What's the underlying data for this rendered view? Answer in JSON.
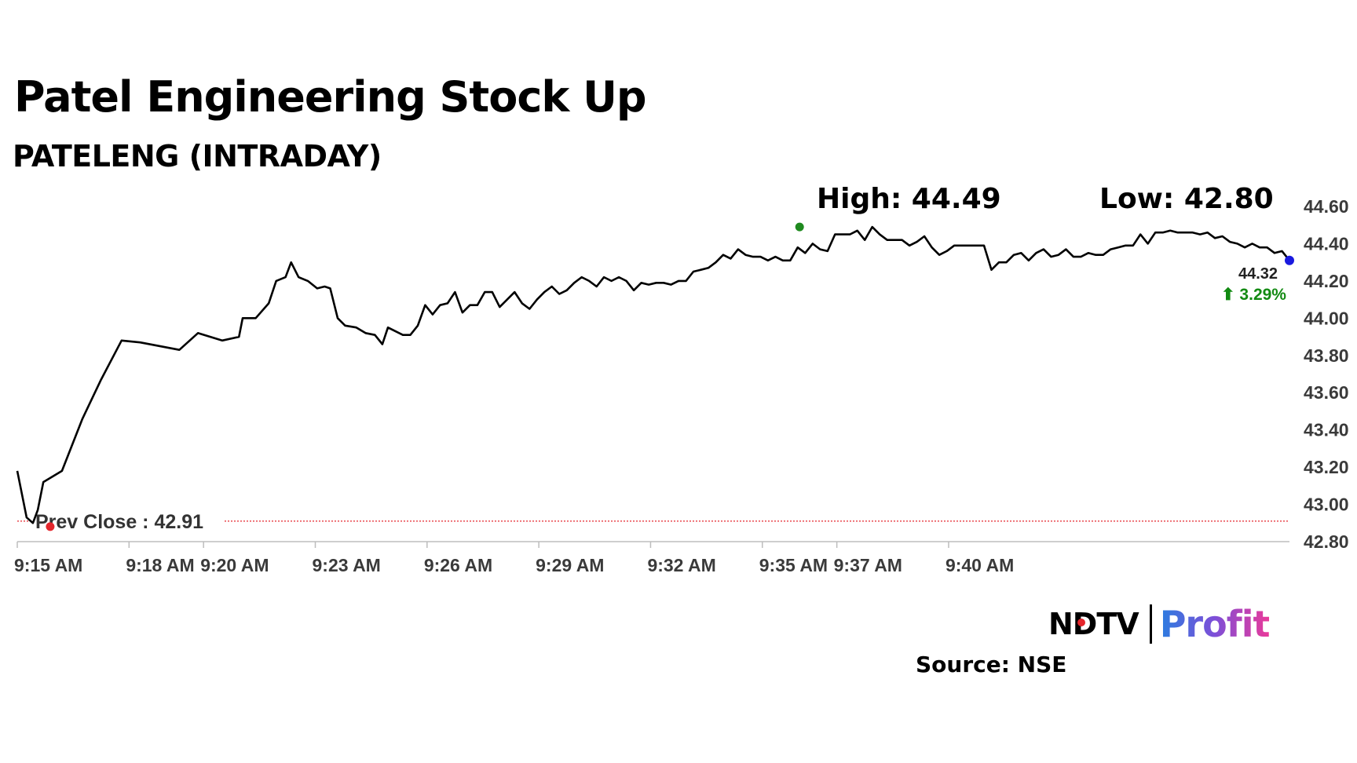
{
  "title": "Patel Engineering Stock Up",
  "subtitle": "PATELENG (INTRADAY)",
  "source": "Source: NSE",
  "logo": {
    "ndtv": "NDTV",
    "profit": "Profit"
  },
  "colors": {
    "line": "#000000",
    "prev_close": "#e4262c",
    "high_marker": "#1f8a1f",
    "last_marker": "#1a1adf",
    "change_up": "#128a12"
  },
  "chart_data": {
    "type": "line",
    "title": "Patel Engineering Stock Up",
    "subtitle": "PATELENG (INTRADAY)",
    "xlabel": "",
    "ylabel": "",
    "ylim": [
      42.8,
      44.6
    ],
    "y_ticks": [
      "42.80",
      "43.00",
      "43.20",
      "43.40",
      "43.60",
      "43.80",
      "44.00",
      "44.20",
      "44.40",
      "44.60"
    ],
    "x_ticks": [
      "9:15 AM",
      "9:18 AM",
      "9:20 AM",
      "9:23 AM",
      "9:26 AM",
      "9:29 AM",
      "9:32 AM",
      "9:35 AM",
      "9:37 AM",
      "9:40 AM"
    ],
    "x_tick_minutes": [
      0,
      3,
      5,
      8,
      11,
      14,
      17,
      20,
      22,
      25
    ],
    "x_range_minutes": [
      0,
      29.9
    ],
    "grid": false,
    "annotations": {
      "high_label": "High: 44.49",
      "low_label": "Low: 42.80",
      "prev_close_label": "Prev Close : 42.91",
      "prev_close_value": 42.91,
      "last_value_label": "44.32",
      "change_label": "⬆ 3.29%",
      "high_value": 44.49,
      "high_minute": 21.0
    },
    "series": [
      {
        "values": [
          [
            0.0,
            43.18
          ],
          [
            0.25,
            42.93
          ],
          [
            0.42,
            42.9
          ],
          [
            0.55,
            42.97
          ],
          [
            0.7,
            43.12
          ],
          [
            1.2,
            43.18
          ],
          [
            1.75,
            43.46
          ],
          [
            2.25,
            43.67
          ],
          [
            2.8,
            43.88
          ],
          [
            3.3,
            43.87
          ],
          [
            4.35,
            43.83
          ],
          [
            4.85,
            43.92
          ],
          [
            5.5,
            43.88
          ],
          [
            5.95,
            43.9
          ],
          [
            6.05,
            44.0
          ],
          [
            6.4,
            44.0
          ],
          [
            6.75,
            44.08
          ],
          [
            6.95,
            44.2
          ],
          [
            7.2,
            44.22
          ],
          [
            7.35,
            44.3
          ],
          [
            7.55,
            44.22
          ],
          [
            7.8,
            44.2
          ],
          [
            8.05,
            44.16
          ],
          [
            8.25,
            44.17
          ],
          [
            8.4,
            44.16
          ],
          [
            8.6,
            44.0
          ],
          [
            8.8,
            43.96
          ],
          [
            9.1,
            43.95
          ],
          [
            9.35,
            43.92
          ],
          [
            9.6,
            43.91
          ],
          [
            9.8,
            43.86
          ],
          [
            9.95,
            43.95
          ],
          [
            10.15,
            43.93
          ],
          [
            10.35,
            43.91
          ],
          [
            10.55,
            43.91
          ],
          [
            10.75,
            43.96
          ],
          [
            10.95,
            44.07
          ],
          [
            11.15,
            44.02
          ],
          [
            11.35,
            44.07
          ],
          [
            11.55,
            44.08
          ],
          [
            11.75,
            44.14
          ],
          [
            11.95,
            44.03
          ],
          [
            12.15,
            44.07
          ],
          [
            12.35,
            44.07
          ],
          [
            12.55,
            44.14
          ],
          [
            12.75,
            44.14
          ],
          [
            12.95,
            44.06
          ],
          [
            13.15,
            44.1
          ],
          [
            13.35,
            44.14
          ],
          [
            13.55,
            44.08
          ],
          [
            13.75,
            44.05
          ],
          [
            13.95,
            44.1
          ],
          [
            14.15,
            44.14
          ],
          [
            14.35,
            44.17
          ],
          [
            14.55,
            44.13
          ],
          [
            14.75,
            44.15
          ],
          [
            14.95,
            44.19
          ],
          [
            15.15,
            44.22
          ],
          [
            15.35,
            44.2
          ],
          [
            15.55,
            44.17
          ],
          [
            15.75,
            44.22
          ],
          [
            15.95,
            44.2
          ],
          [
            16.15,
            44.22
          ],
          [
            16.35,
            44.2
          ],
          [
            16.55,
            44.15
          ],
          [
            16.75,
            44.19
          ],
          [
            16.95,
            44.18
          ],
          [
            17.15,
            44.19
          ],
          [
            17.35,
            44.19
          ],
          [
            17.55,
            44.18
          ],
          [
            17.75,
            44.2
          ],
          [
            17.95,
            44.2
          ],
          [
            18.15,
            44.25
          ],
          [
            18.35,
            44.26
          ],
          [
            18.55,
            44.27
          ],
          [
            18.75,
            44.3
          ],
          [
            18.95,
            44.34
          ],
          [
            19.15,
            44.32
          ],
          [
            19.35,
            44.37
          ],
          [
            19.55,
            44.34
          ],
          [
            19.75,
            44.33
          ],
          [
            19.95,
            44.33
          ],
          [
            20.15,
            44.31
          ],
          [
            20.35,
            44.33
          ],
          [
            20.55,
            44.31
          ],
          [
            20.75,
            44.31
          ],
          [
            20.95,
            44.38
          ],
          [
            21.15,
            44.35
          ],
          [
            21.35,
            44.4
          ],
          [
            21.55,
            44.37
          ],
          [
            21.75,
            44.36
          ],
          [
            21.95,
            44.45
          ],
          [
            22.15,
            44.45
          ],
          [
            22.35,
            44.45
          ],
          [
            22.55,
            44.47
          ],
          [
            22.75,
            44.42
          ],
          [
            22.95,
            44.49
          ],
          [
            23.15,
            44.45
          ],
          [
            23.35,
            44.42
          ],
          [
            23.55,
            44.42
          ],
          [
            23.75,
            44.42
          ],
          [
            23.95,
            44.39
          ],
          [
            24.15,
            44.41
          ],
          [
            24.35,
            44.44
          ],
          [
            24.55,
            44.38
          ],
          [
            24.75,
            44.34
          ],
          [
            24.95,
            44.36
          ],
          [
            25.15,
            44.39
          ],
          [
            25.45,
            44.39
          ],
          [
            25.75,
            44.39
          ],
          [
            25.95,
            44.39
          ],
          [
            26.15,
            44.26
          ],
          [
            26.35,
            44.3
          ],
          [
            26.55,
            44.3
          ],
          [
            26.75,
            44.34
          ],
          [
            26.95,
            44.35
          ],
          [
            27.15,
            44.31
          ],
          [
            27.35,
            44.35
          ],
          [
            27.55,
            44.37
          ],
          [
            27.75,
            44.33
          ],
          [
            27.95,
            44.34
          ],
          [
            28.15,
            44.37
          ],
          [
            28.35,
            44.33
          ],
          [
            28.55,
            44.33
          ],
          [
            28.75,
            44.35
          ],
          [
            28.95,
            44.34
          ],
          [
            29.15,
            44.34
          ],
          [
            29.35,
            44.37
          ],
          [
            29.55,
            44.38
          ],
          [
            29.75,
            44.39
          ],
          [
            29.95,
            44.39
          ],
          [
            30.15,
            44.45
          ],
          [
            30.35,
            44.4
          ],
          [
            30.55,
            44.46
          ],
          [
            30.75,
            44.46
          ],
          [
            30.95,
            44.47
          ],
          [
            31.15,
            44.46
          ],
          [
            31.35,
            44.46
          ],
          [
            31.55,
            44.46
          ],
          [
            31.75,
            44.45
          ],
          [
            31.95,
            44.46
          ],
          [
            32.15,
            44.43
          ],
          [
            32.35,
            44.44
          ],
          [
            32.55,
            44.41
          ],
          [
            32.75,
            44.4
          ],
          [
            32.95,
            44.38
          ],
          [
            33.15,
            44.4
          ],
          [
            33.35,
            44.38
          ],
          [
            33.55,
            44.38
          ],
          [
            33.75,
            44.35
          ],
          [
            33.95,
            44.36
          ],
          [
            34.15,
            44.31
          ]
        ]
      }
    ]
  }
}
